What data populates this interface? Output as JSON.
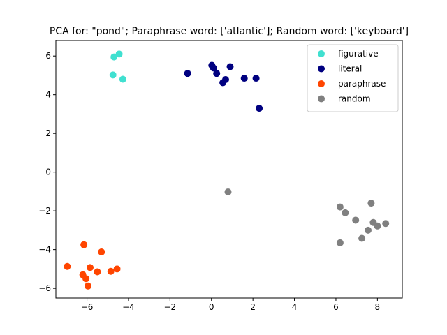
{
  "chart_data": {
    "type": "scatter",
    "title": "PCA for: \"pond\"; Paraphrase word: ['atlantic']; Random word: ['keyboard']",
    "xlabel": "",
    "ylabel": "",
    "xlim": [
      -7.5,
      9.2
    ],
    "ylim": [
      -6.5,
      6.8
    ],
    "xticks": [
      -6,
      -4,
      -2,
      0,
      2,
      4,
      6,
      8
    ],
    "yticks": [
      -6,
      -4,
      -2,
      0,
      2,
      4,
      6
    ],
    "grid": false,
    "legend_position": "top-right",
    "series": [
      {
        "name": "figurative",
        "color": "#40e0d0",
        "points": [
          [
            -4.7,
            5.95
          ],
          [
            -4.45,
            6.1
          ],
          [
            -4.75,
            5.02
          ],
          [
            -4.27,
            4.8
          ]
        ]
      },
      {
        "name": "literal",
        "color": "#000080",
        "points": [
          [
            -1.15,
            5.1
          ],
          [
            0.02,
            5.52
          ],
          [
            0.1,
            5.38
          ],
          [
            0.25,
            5.1
          ],
          [
            0.55,
            4.62
          ],
          [
            0.68,
            4.78
          ],
          [
            0.9,
            5.45
          ],
          [
            1.58,
            4.85
          ],
          [
            2.15,
            4.85
          ],
          [
            2.3,
            3.3
          ]
        ]
      },
      {
        "name": "paraphrase",
        "color": "#ff4500",
        "points": [
          [
            -6.95,
            -4.87
          ],
          [
            -6.15,
            -3.75
          ],
          [
            -6.2,
            -5.3
          ],
          [
            -6.05,
            -5.5
          ],
          [
            -5.95,
            -5.88
          ],
          [
            -5.85,
            -4.93
          ],
          [
            -5.5,
            -5.15
          ],
          [
            -5.3,
            -4.12
          ],
          [
            -4.85,
            -5.12
          ],
          [
            -4.55,
            -5.0
          ]
        ]
      },
      {
        "name": "random",
        "color": "#808080",
        "points": [
          [
            0.8,
            -1.02
          ],
          [
            6.2,
            -1.8
          ],
          [
            6.45,
            -2.1
          ],
          [
            6.95,
            -2.48
          ],
          [
            6.2,
            -3.65
          ],
          [
            7.25,
            -3.42
          ],
          [
            7.55,
            -3.0
          ],
          [
            7.7,
            -1.6
          ],
          [
            7.8,
            -2.6
          ],
          [
            8.0,
            -2.78
          ],
          [
            8.4,
            -2.65
          ]
        ]
      }
    ]
  }
}
